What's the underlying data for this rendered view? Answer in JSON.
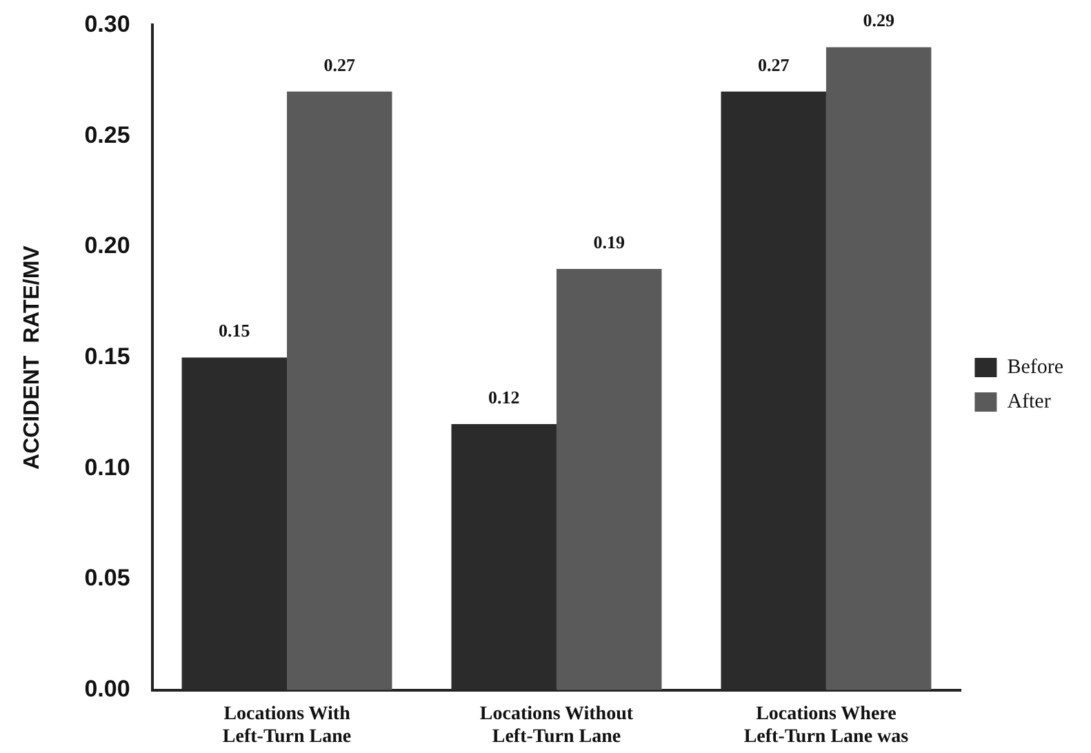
{
  "chart_data": {
    "type": "bar",
    "ylabel": "ACCIDENT  RATE/MV",
    "categories": [
      "Locations With Left-Turn Lane",
      "Locations Without Left-Turn Lane",
      "Locations Where Left-Turn Lane was"
    ],
    "series": [
      {
        "name": "Before",
        "color": "#2b2b2b",
        "values": [
          0.15,
          0.12,
          0.27
        ]
      },
      {
        "name": "After",
        "color": "#5a5a5a",
        "values": [
          0.27,
          0.19,
          0.29
        ]
      }
    ],
    "ylim": [
      0,
      0.3
    ],
    "yticks": [
      {
        "value": 0,
        "label": "0.00"
      },
      {
        "value": 0.05,
        "label": "0.05"
      },
      {
        "value": 0.1,
        "label": "0.10"
      },
      {
        "value": 0.15,
        "label": "0.15"
      },
      {
        "value": 0.2,
        "label": "0.20"
      },
      {
        "value": 0.25,
        "label": "0.25"
      },
      {
        "value": 0.3,
        "label": "0.30"
      }
    ],
    "grid": false,
    "legend": "right",
    "data_labels": true
  }
}
